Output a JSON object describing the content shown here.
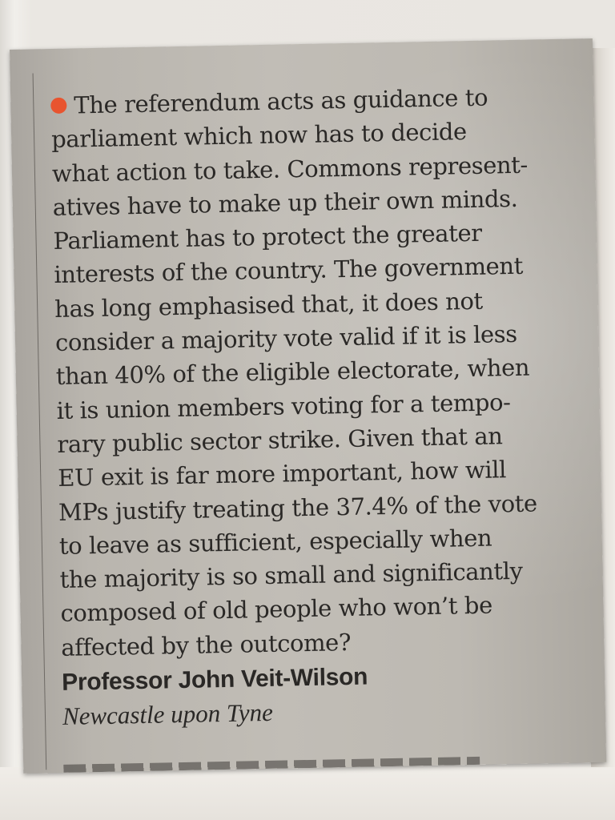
{
  "letter": {
    "bullet_color": "#e8542f",
    "lines": [
      "The referendum acts as guidance to",
      "parliament which now has to decide",
      "what action to take. Commons represent-",
      "atives have to make up their own minds.",
      "Parliament has to protect the greater",
      "interests of the country. The government",
      "has long emphasised that, it does not",
      "consider a majority vote valid if it is less",
      "than 40% of the eligible electorate, when",
      "it is union members voting for a tempo-",
      "rary public sector strike. Given that an",
      "EU exit is far more important, how will",
      "MPs justify treating the 37.4% of the vote",
      "to leave as sufficient, especially when",
      "the majority is so small and significantly",
      "composed of old people who won’t be",
      "affected by the outcome?"
    ],
    "signer": "Professor John Veit-Wilson",
    "place": "Newcastle upon Tyne"
  },
  "colors": {
    "ink": "#2a2826",
    "paper": "#bdb9b2",
    "bullet": "#e8542f"
  }
}
